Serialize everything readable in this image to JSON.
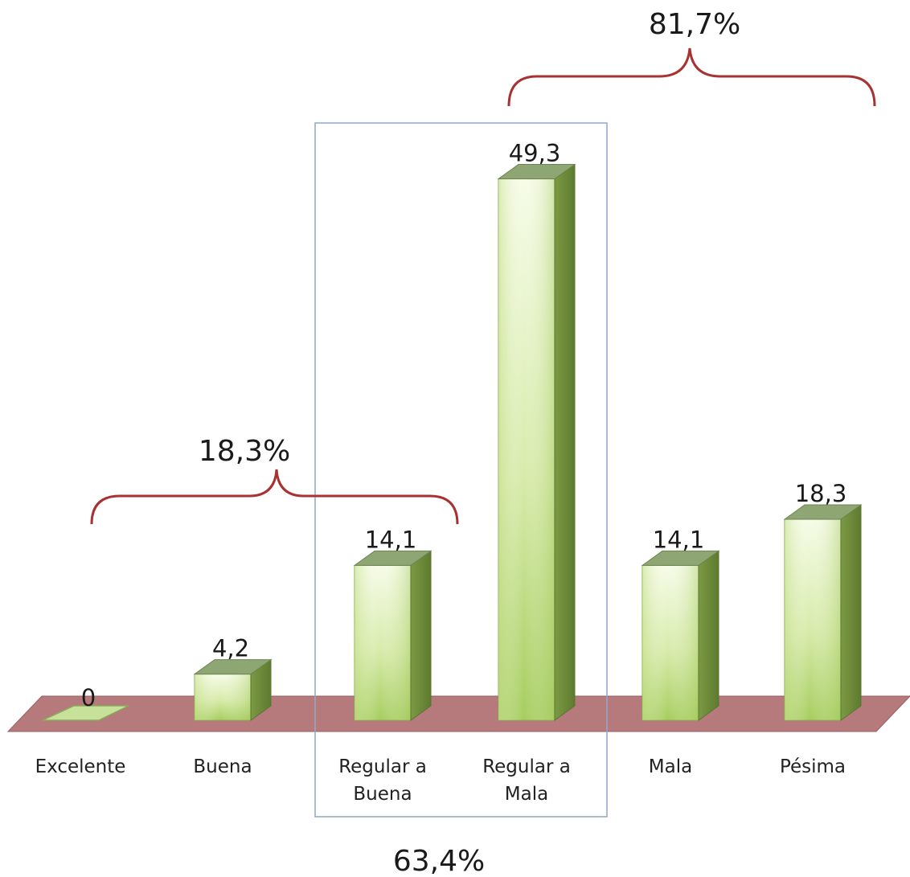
{
  "chart_data": {
    "type": "bar",
    "categories": [
      [
        "Excelente"
      ],
      [
        "Buena"
      ],
      [
        "Regular a",
        "Buena"
      ],
      [
        "Regular a",
        "Mala"
      ],
      [
        "Mala"
      ],
      [
        "Pésima"
      ]
    ],
    "values": [
      0,
      4.2,
      14.1,
      49.3,
      14.1,
      18.3
    ],
    "value_labels": [
      "0",
      "4,2",
      "14,1",
      "49,3",
      "14,1",
      "18,3"
    ],
    "ylim": [
      0,
      50
    ],
    "grid": false,
    "legend": "none",
    "colors": {
      "bar_front_light": "#f4fbe4",
      "bar_front_dark": "#a9cf62",
      "bar_side": "#6f8c3a",
      "bar_top": "#8fa572",
      "floor": "#b3797b",
      "bracket": "#a83232",
      "box": "#8fa9c8"
    },
    "annotations": {
      "top_bracket": "81,7%",
      "left_bracket": "18,3%",
      "box_label": "63,4%"
    }
  }
}
